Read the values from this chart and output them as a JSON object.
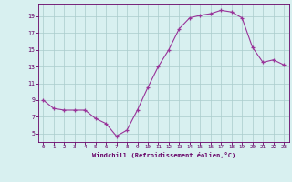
{
  "x": [
    0,
    1,
    2,
    3,
    4,
    5,
    6,
    7,
    8,
    9,
    10,
    11,
    12,
    13,
    14,
    15,
    16,
    17,
    18,
    19,
    20,
    21,
    22,
    23
  ],
  "y": [
    9,
    8,
    7.8,
    7.8,
    7.8,
    6.8,
    6.2,
    4.7,
    5.4,
    7.8,
    10.5,
    13,
    15,
    17.5,
    18.8,
    19.1,
    19.3,
    19.7,
    19.5,
    18.8,
    15.3,
    13.5,
    13.8,
    13.2
  ],
  "line_color": "#993399",
  "marker": "+",
  "marker_color": "#993399",
  "bg_color": "#d8f0f0",
  "grid_color": "#aacccc",
  "tick_color": "#660066",
  "label_color": "#660066",
  "xlabel": "Windchill (Refroidissement éolien,°C)",
  "yticks": [
    5,
    7,
    9,
    11,
    13,
    15,
    17,
    19
  ],
  "xticks": [
    0,
    1,
    2,
    3,
    4,
    5,
    6,
    7,
    8,
    9,
    10,
    11,
    12,
    13,
    14,
    15,
    16,
    17,
    18,
    19,
    20,
    21,
    22,
    23
  ],
  "ylim": [
    4.0,
    20.5
  ],
  "xlim": [
    -0.5,
    23.5
  ]
}
